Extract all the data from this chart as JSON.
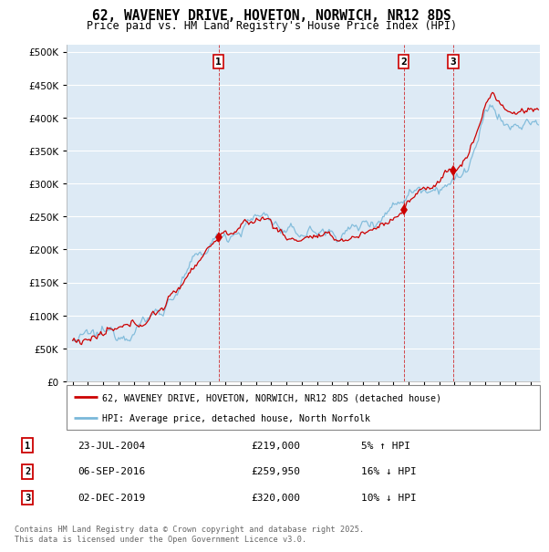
{
  "title": "62, WAVENEY DRIVE, HOVETON, NORWICH, NR12 8DS",
  "subtitle": "Price paid vs. HM Land Registry's House Price Index (HPI)",
  "legend_line1": "62, WAVENEY DRIVE, HOVETON, NORWICH, NR12 8DS (detached house)",
  "legend_line2": "HPI: Average price, detached house, North Norfolk",
  "footnote": "Contains HM Land Registry data © Crown copyright and database right 2025.\nThis data is licensed under the Open Government Licence v3.0.",
  "transactions": [
    {
      "label": "1",
      "date": "23-JUL-2004",
      "price": 219000,
      "pct": "5%",
      "dir": "↑",
      "x": 2004.55
    },
    {
      "label": "2",
      "date": "06-SEP-2016",
      "price": 259950,
      "pct": "16%",
      "dir": "↓",
      "x": 2016.68
    },
    {
      "label": "3",
      "date": "02-DEC-2019",
      "price": 320000,
      "pct": "10%",
      "dir": "↓",
      "x": 2019.92
    }
  ],
  "hpi_color": "#7ab8d9",
  "price_color": "#cc0000",
  "background_color": "#ddeaf5",
  "plot_bg": "#ddeaf5",
  "ylim": [
    0,
    510000
  ],
  "yticks": [
    0,
    50000,
    100000,
    150000,
    200000,
    250000,
    300000,
    350000,
    400000,
    450000,
    500000
  ],
  "xlim": [
    1994.6,
    2025.6
  ]
}
